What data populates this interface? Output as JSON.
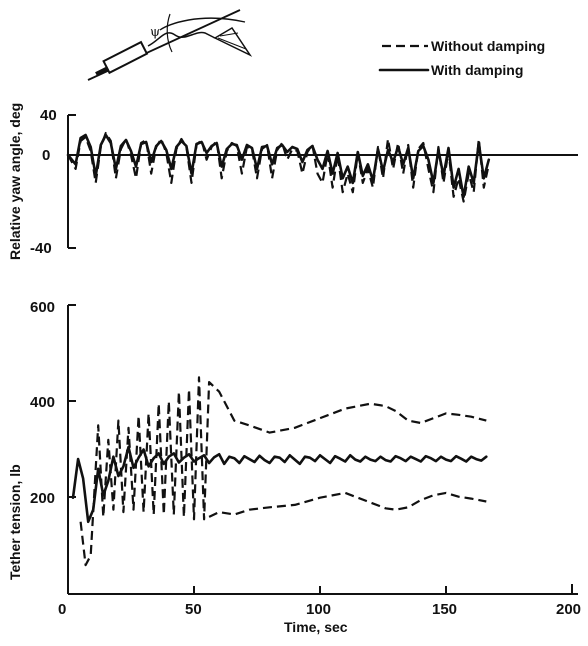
{
  "chart_data": [
    {
      "type": "line",
      "panel": "yaw",
      "ylabel": "Relative yaw angle, deg",
      "ylim": [
        -40,
        40
      ],
      "xlim": [
        0,
        200
      ],
      "yticks": [
        "40",
        "0",
        "-40"
      ],
      "series": [
        {
          "name": "With damping",
          "style": "solid",
          "x": [
            0,
            3,
            5,
            7,
            9,
            11,
            13,
            15,
            17,
            19,
            21,
            23,
            25,
            27,
            29,
            31,
            33,
            35,
            37,
            39,
            41,
            43,
            45,
            47,
            49,
            51,
            53,
            55,
            57,
            59,
            61,
            63,
            65,
            67,
            69,
            71,
            73,
            75,
            77,
            79,
            81,
            83,
            85,
            87,
            89,
            91,
            93,
            95,
            97,
            99,
            101,
            103,
            105,
            107,
            109,
            111,
            113,
            115,
            117,
            119,
            121,
            123,
            125,
            127,
            129,
            131,
            133,
            135,
            137,
            139,
            141,
            143,
            145,
            147,
            149,
            151,
            153,
            155,
            157,
            159,
            161,
            163,
            165,
            167
          ],
          "y": [
            0,
            -4,
            17,
            20,
            8,
            -9,
            10,
            20,
            12,
            -6,
            9,
            15,
            4,
            -5,
            11,
            13,
            -3,
            9,
            14,
            5,
            -6,
            8,
            14,
            9,
            -8,
            11,
            13,
            2,
            9,
            12,
            -5,
            6,
            11,
            10,
            -2,
            10,
            7,
            -6,
            8,
            9,
            -4,
            7,
            10,
            3,
            8,
            6,
            -3,
            5,
            9,
            -2,
            -6,
            4,
            -8,
            2,
            -10,
            -5,
            -12,
            3,
            -9,
            -4,
            -11,
            6,
            -7,
            5,
            -3,
            8,
            -4,
            7,
            -10,
            4,
            9,
            -2,
            -12,
            5,
            -9,
            7,
            -14,
            -6,
            -18,
            -5,
            -12,
            12,
            -10,
            -2
          ]
        },
        {
          "name": "Without damping",
          "style": "dashed",
          "x": [
            0,
            3,
            5,
            7,
            9,
            11,
            13,
            15,
            17,
            19,
            21,
            23,
            25,
            27,
            29,
            31,
            33,
            35,
            37,
            39,
            41,
            43,
            45,
            47,
            49,
            51,
            53,
            55,
            57,
            59,
            61,
            63,
            65,
            67,
            69,
            71,
            73,
            75,
            77,
            79,
            81,
            83,
            85,
            87,
            89,
            91,
            93,
            95,
            97,
            99,
            101,
            103,
            105,
            107,
            109,
            111,
            113,
            115,
            117,
            119,
            121,
            123,
            125,
            127,
            129,
            131,
            133,
            135,
            137,
            139,
            141,
            143,
            145,
            147,
            149,
            151,
            153,
            155,
            157,
            159,
            161,
            163,
            165,
            167
          ],
          "y": [
            0,
            -6,
            14,
            18,
            4,
            -12,
            8,
            22,
            14,
            -10,
            6,
            16,
            0,
            -10,
            12,
            15,
            -8,
            8,
            16,
            2,
            -12,
            6,
            16,
            8,
            -12,
            10,
            15,
            -2,
            8,
            14,
            -10,
            4,
            12,
            9,
            -8,
            8,
            6,
            -10,
            6,
            10,
            -10,
            5,
            12,
            -2,
            6,
            4,
            -8,
            3,
            10,
            -8,
            -12,
            2,
            -14,
            0,
            -16,
            -8,
            -16,
            2,
            -12,
            -6,
            -14,
            8,
            -10,
            16,
            -6,
            12,
            -8,
            10,
            -14,
            6,
            12,
            -6,
            -16,
            8,
            -12,
            4,
            -18,
            -10,
            -20,
            -8,
            -16,
            16,
            -14,
            -4
          ]
        }
      ]
    },
    {
      "type": "line",
      "panel": "tension",
      "xlabel": "Time, sec",
      "ylabel": "Tether tension, lb",
      "ylim": [
        0,
        600
      ],
      "xlim": [
        0,
        200
      ],
      "yticks": [
        "600",
        "400",
        "200"
      ],
      "xticks": [
        "0",
        "50",
        "100",
        "150",
        "200"
      ],
      "series": [
        {
          "name": "With damping",
          "style": "solid",
          "x": [
            2,
            4,
            6,
            8,
            10,
            12,
            14,
            16,
            18,
            20,
            22,
            24,
            26,
            28,
            30,
            32,
            34,
            36,
            38,
            40,
            42,
            44,
            46,
            48,
            50,
            52,
            54,
            56,
            58,
            60,
            62,
            64,
            66,
            68,
            70,
            72,
            74,
            76,
            78,
            80,
            82,
            84,
            86,
            88,
            90,
            92,
            94,
            96,
            98,
            100,
            102,
            104,
            106,
            108,
            110,
            112,
            114,
            116,
            118,
            120,
            122,
            124,
            126,
            128,
            130,
            132,
            134,
            136,
            138,
            140,
            142,
            144,
            146,
            148,
            150,
            152,
            154,
            156,
            158,
            160,
            162,
            164,
            166
          ],
          "y": [
            200,
            280,
            240,
            150,
            175,
            260,
            205,
            235,
            285,
            245,
            265,
            305,
            262,
            283,
            300,
            265,
            282,
            292,
            270,
            285,
            292,
            273,
            283,
            290,
            275,
            282,
            288,
            272,
            284,
            290,
            270,
            285,
            282,
            272,
            286,
            280,
            274,
            287,
            278,
            272,
            285,
            283,
            274,
            288,
            279,
            270,
            285,
            283,
            276,
            288,
            280,
            272,
            286,
            281,
            275,
            288,
            279,
            275,
            285,
            279,
            276,
            285,
            278,
            275,
            286,
            282,
            276,
            285,
            280,
            275,
            286,
            282,
            276,
            285,
            279,
            276,
            286,
            281,
            275,
            285,
            280,
            277,
            285
          ]
        },
        {
          "name": "Without damping",
          "style": "dashed",
          "x": [
            5,
            7,
            9,
            10,
            12,
            14,
            16,
            18,
            20,
            22,
            24,
            26,
            28,
            30,
            32,
            34,
            36,
            38,
            40,
            42,
            44,
            46,
            48,
            50,
            52,
            54,
            56,
            60,
            66,
            72,
            80,
            90,
            100,
            110,
            120,
            126,
            130,
            135,
            140,
            145,
            150,
            155,
            160,
            166
          ],
          "y": [
            150,
            60,
            80,
            170,
            350,
            160,
            320,
            175,
            360,
            170,
            345,
            175,
            370,
            170,
            375,
            165,
            395,
            165,
            400,
            165,
            420,
            160,
            425,
            155,
            450,
            155,
            440,
            420,
            360,
            350,
            335,
            345,
            365,
            385,
            395,
            390,
            380,
            360,
            355,
            365,
            375,
            372,
            368,
            360
          ]
        },
        {
          "name": "Without damping lower envelope",
          "style": "dashed",
          "x": [
            56,
            60,
            66,
            72,
            80,
            90,
            100,
            110,
            120,
            126,
            130,
            135,
            140,
            145,
            150,
            155,
            160,
            166
          ],
          "y": [
            160,
            170,
            165,
            175,
            180,
            185,
            200,
            210,
            190,
            178,
            175,
            180,
            195,
            205,
            210,
            202,
            198,
            192
          ]
        }
      ]
    }
  ],
  "legend": {
    "without_damping": "Without damping",
    "with_damping": "With damping"
  },
  "inset": {
    "symbol": "ψ"
  }
}
